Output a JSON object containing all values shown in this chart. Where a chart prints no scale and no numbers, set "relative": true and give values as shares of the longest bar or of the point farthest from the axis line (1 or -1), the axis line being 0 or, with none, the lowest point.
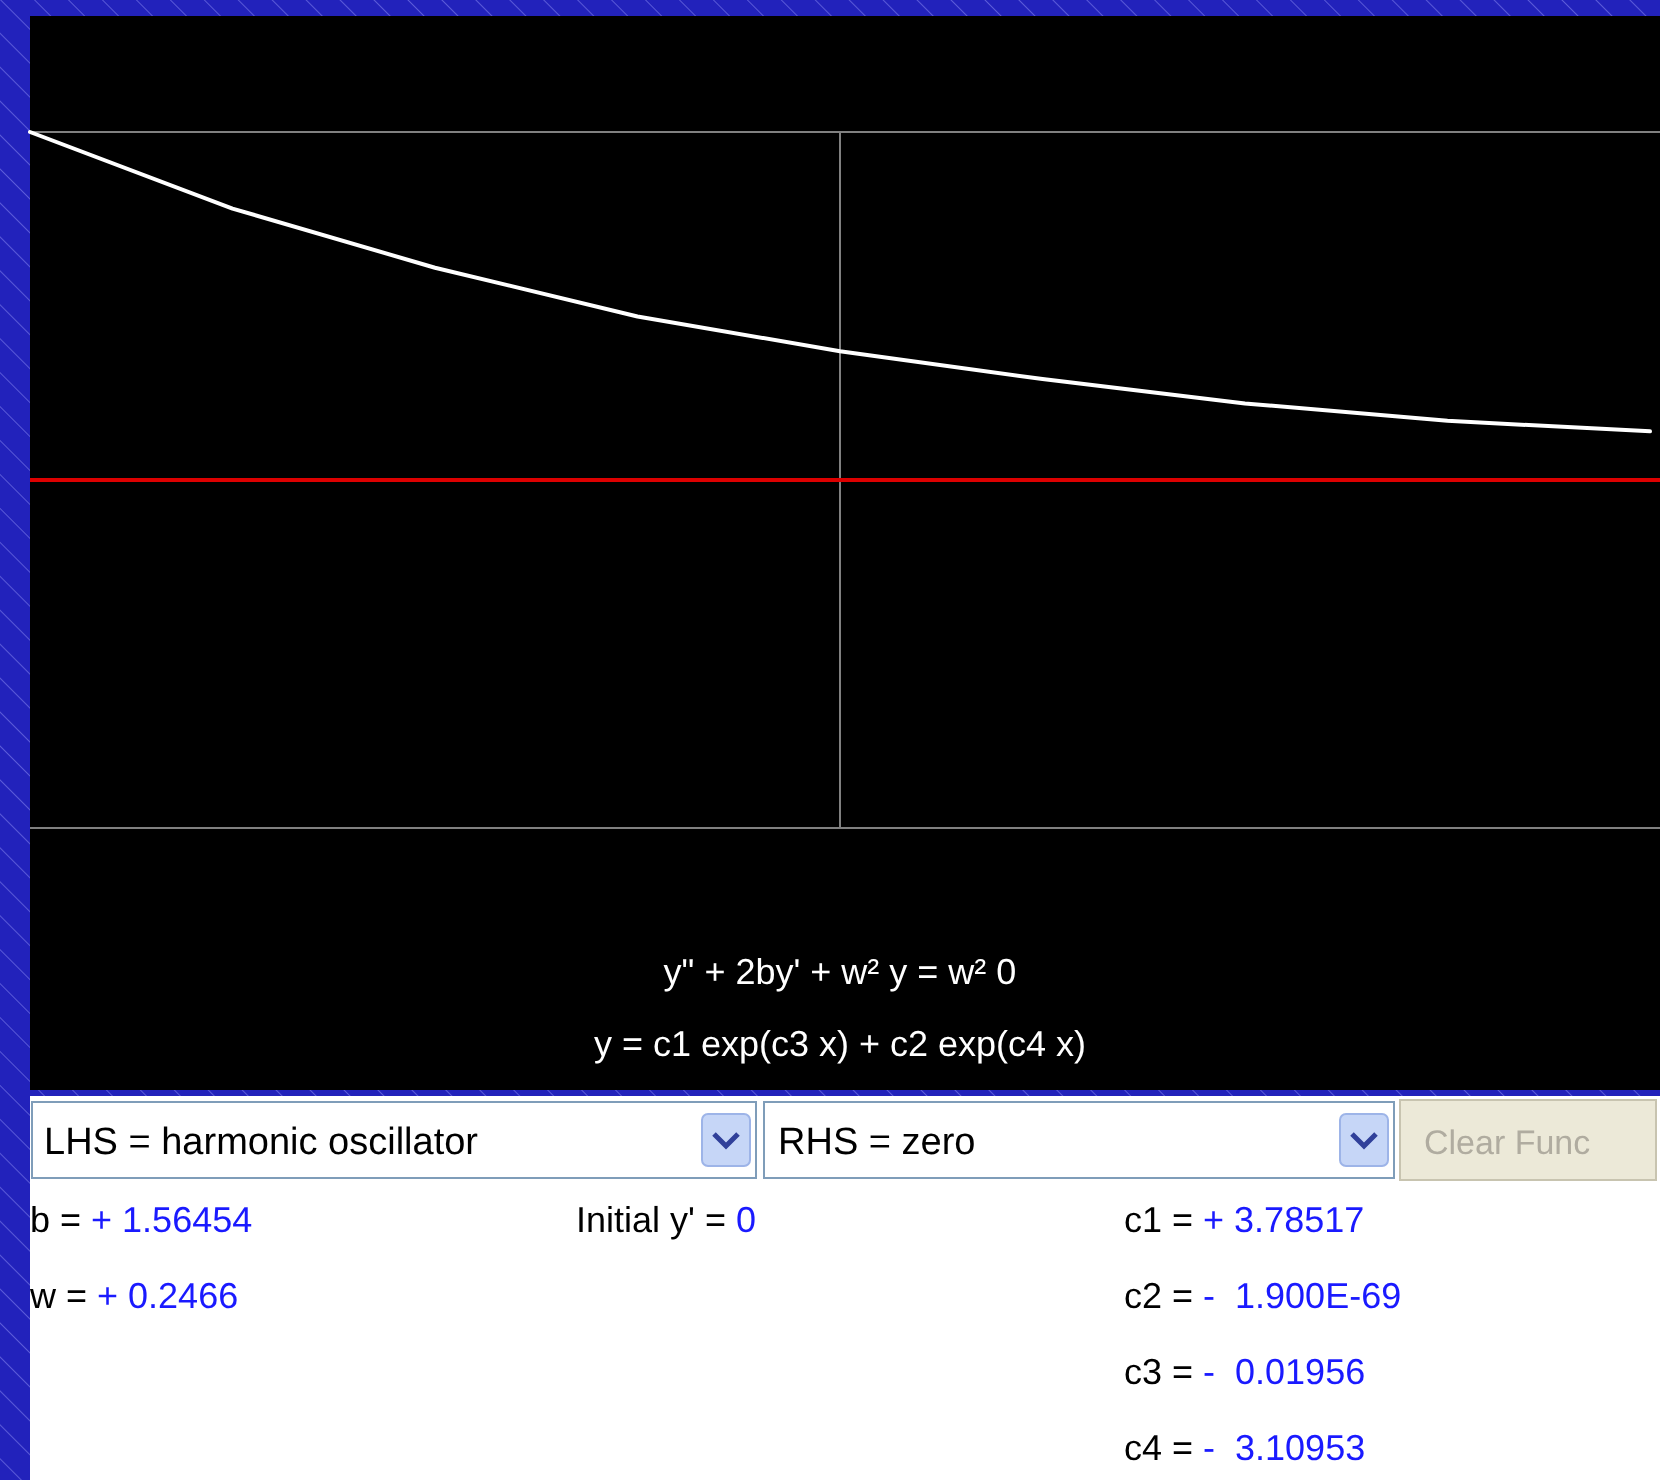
{
  "chart_data": {
    "type": "line",
    "relative": true,
    "categories": [
      null,
      null,
      null,
      null,
      null,
      null,
      null,
      null,
      null
    ],
    "series": [
      {
        "color": "#ffffff",
        "values": [
          1,
          0.78,
          0.61,
          0.47,
          0.37,
          0.29,
          0.22,
          0.17,
          0.14
        ]
      }
    ],
    "marker": "none",
    "line_style": "solid",
    "annotations": [
      "y\" + 2by' + w² y = w² 0",
      "y = c1 exp(c3 x) + c2 exp(c4 x)",
      "LHS = harmonic oscillator",
      "RHS = zero",
      "Clear Func",
      "b = + 1.56454",
      "w = + 0.2466",
      "Initial y' = 0",
      "c1 = + 3.78517",
      "c2 = -  1.900E-69",
      "c3 = -  0.01956",
      "c4 = -  3.10953"
    ]
  }
}
